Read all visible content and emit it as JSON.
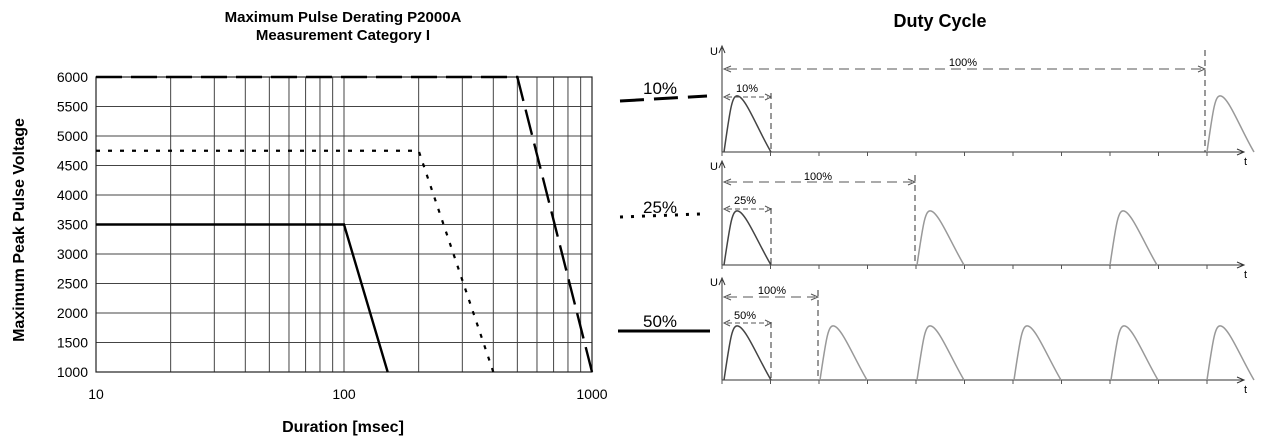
{
  "chart_data": [
    {
      "type": "line",
      "title": "Maximum Pulse Derating P2000A",
      "subtitle": "Measurement Category I",
      "xlabel": "Duration [msec]",
      "ylabel": "Maximum Peak Pulse Voltage",
      "xscale": "log",
      "xlim": [
        10,
        1000
      ],
      "ylim": [
        1000,
        6000
      ],
      "grid": true,
      "x_ticks": [
        "10",
        "100",
        "1000"
      ],
      "y_ticks": [
        "6000",
        "5500",
        "5000",
        "4500",
        "4000",
        "3500",
        "3000",
        "2500",
        "2000",
        "1500",
        "1000"
      ],
      "series": [
        {
          "name": "10%",
          "style": "dashed",
          "x": [
            10,
            500,
            1000
          ],
          "y": [
            6000,
            6000,
            1000
          ]
        },
        {
          "name": "25%",
          "style": "dotted",
          "x": [
            10,
            200,
            400
          ],
          "y": [
            4750,
            4750,
            1000
          ]
        },
        {
          "name": "50%",
          "style": "solid",
          "x": [
            10,
            100,
            150
          ],
          "y": [
            3500,
            3500,
            1000
          ]
        }
      ]
    },
    {
      "type": "diagram",
      "title": "Duty Cycle",
      "y_axis_label": "U",
      "x_axis_label": "t",
      "period_label": "100%",
      "panels": [
        {
          "duty_label": "10%",
          "duty": 0.1,
          "pulse_count": 2
        },
        {
          "duty_label": "25%",
          "duty": 0.25,
          "pulse_count": 3
        },
        {
          "duty_label": "50%",
          "duty": 0.5,
          "pulse_count": 6
        }
      ]
    }
  ]
}
